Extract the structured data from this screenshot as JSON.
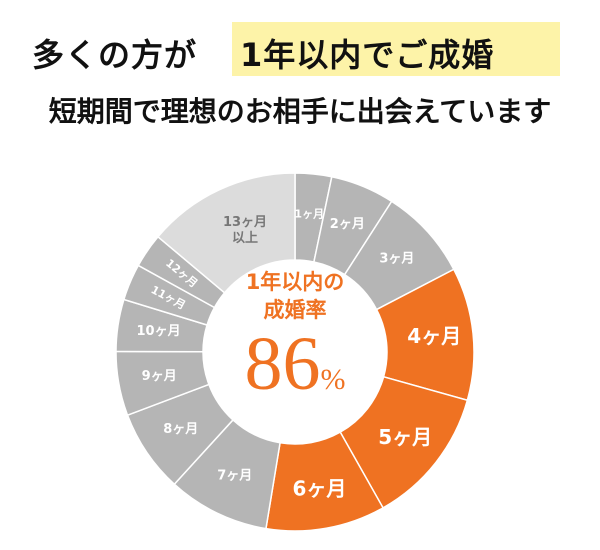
{
  "header": {
    "line1_prefix": "多くの方が",
    "line1_highlight": "1年以内でご成婚",
    "line2": "短期間で理想のお相手に出会えています",
    "highlight_color": "#fdf3a8"
  },
  "center": {
    "label_line1": "1年以内の",
    "label_line2": "成婚率",
    "value": "86",
    "unit": "%"
  },
  "chart_data": {
    "type": "pie",
    "style": "donut",
    "categories": [
      "1ヶ月",
      "2ヶ月",
      "3ヶ月",
      "4ヶ月",
      "5ヶ月",
      "6ヶ月",
      "7ヶ月",
      "8ヶ月",
      "9ヶ月",
      "10ヶ月",
      "11ヶ月",
      "12ヶ月",
      "13ヶ月以上"
    ],
    "values": [
      3.3,
      5.8,
      8.3,
      12.0,
      12.5,
      10.8,
      9.2,
      7.5,
      5.8,
      4.7,
      3.3,
      3.1,
      13.9
    ],
    "highlighted": [
      false,
      false,
      false,
      true,
      true,
      true,
      false,
      false,
      false,
      false,
      false,
      false,
      false
    ],
    "colors": {
      "highlight": "#ef7222",
      "default": "#b5b5b5",
      "last": "#dcdcdc",
      "label_default": "#ffffff",
      "label_last": "#777777"
    }
  }
}
